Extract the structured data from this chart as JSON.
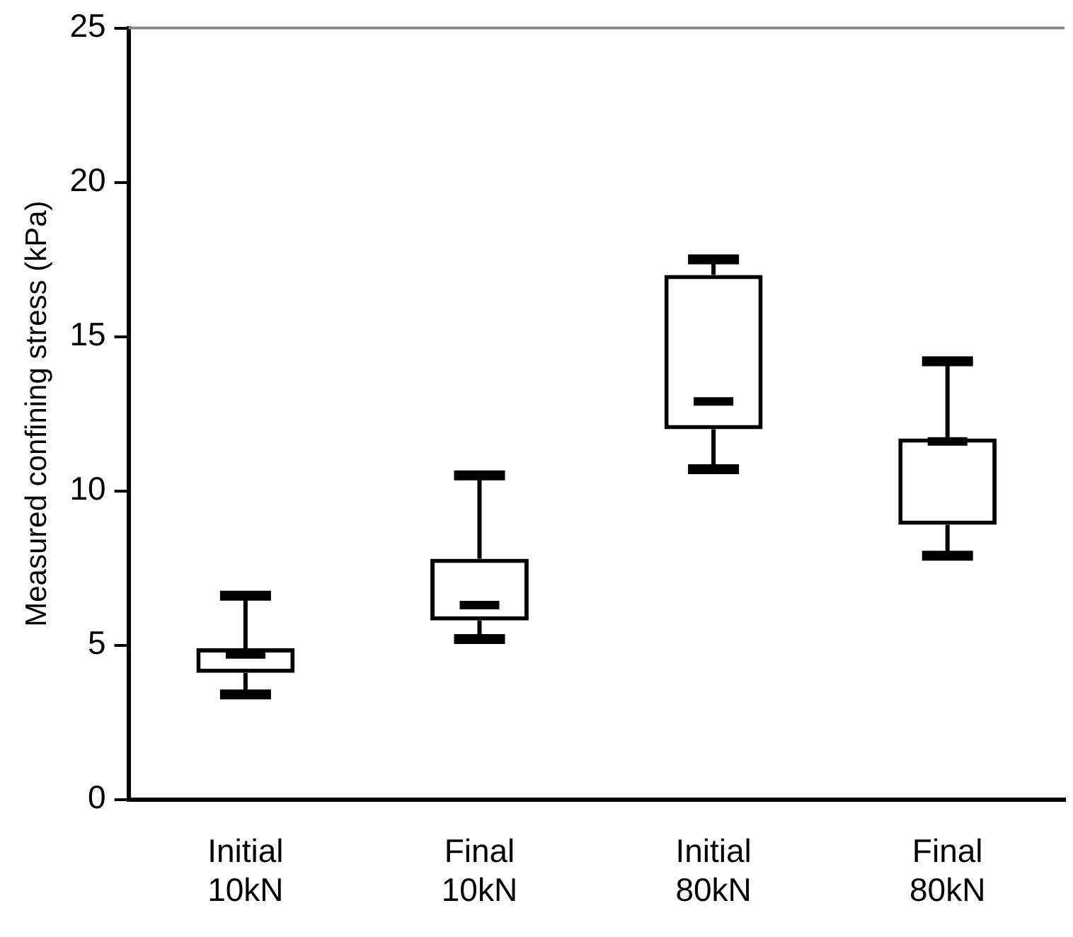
{
  "chart_data": {
    "type": "box",
    "ylabel": "Measured confining stress (kPa)",
    "categories": [
      "Initial 10kN",
      "Final 10kN",
      "Initial 80kN",
      "Final 80kN"
    ],
    "boxes": [
      {
        "low": 3.4,
        "q1": 4.1,
        "median": 4.7,
        "q3": 4.9,
        "high": 6.6
      },
      {
        "low": 5.2,
        "q1": 5.8,
        "median": 6.3,
        "q3": 7.8,
        "high": 10.5
      },
      {
        "low": 10.7,
        "q1": 12.0,
        "median": 12.9,
        "q3": 17.0,
        "high": 17.5
      },
      {
        "low": 7.9,
        "q1": 8.9,
        "median": 11.6,
        "q3": 11.7,
        "high": 14.2
      }
    ],
    "color": "#000000",
    "ylim": [
      0,
      25
    ],
    "yticks": [
      0,
      5,
      10,
      15,
      20,
      25
    ],
    "grid": false,
    "legend": false
  }
}
